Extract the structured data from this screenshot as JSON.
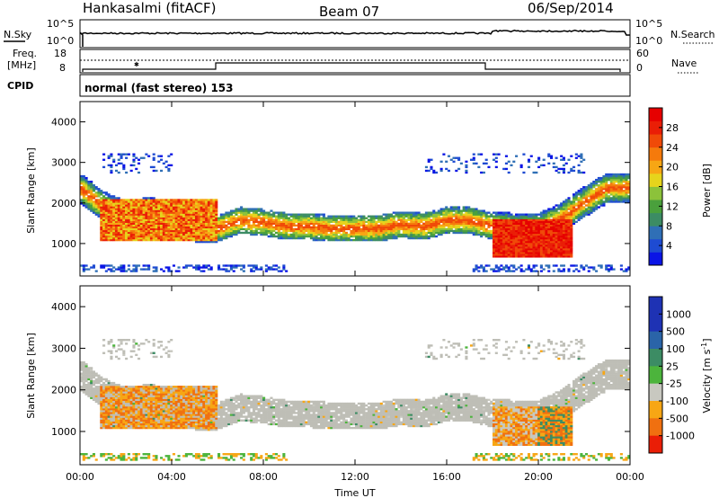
{
  "header": {
    "station": "Hankasalmi (fitACF)",
    "beam": "Beam 07",
    "date": "06/Sep/2014"
  },
  "noise_panel": {
    "left_label": "N.Sky",
    "right_label": "N.Search",
    "left_ticks": [
      "10^5",
      "10^0"
    ],
    "right_ticks": [
      "10^5",
      "10^0"
    ]
  },
  "freq_panel": {
    "left_label_1": "Freq.",
    "left_label_2": "[MHz]",
    "right_label": "Nave",
    "left_ticks": [
      "18",
      "8"
    ],
    "right_ticks": [
      "60",
      "0"
    ]
  },
  "cpid": {
    "label": "CPID",
    "value": "normal (fast stereo) 153"
  },
  "chart_data": [
    {
      "type": "heatmap",
      "name": "power",
      "ylabel": "Slant Range [km]",
      "y_ticks": [
        "1000",
        "2000",
        "3000",
        "4000"
      ],
      "ylim": [
        200,
        4500
      ],
      "x_ticks": [
        "00:00",
        "04:00",
        "08:00",
        "12:00",
        "16:00",
        "20:00",
        "00:00"
      ],
      "xlim_hours": [
        0,
        24
      ],
      "colorbar": {
        "label": "Power [dB]",
        "ticks": [
          "4",
          "8",
          "12",
          "16",
          "20",
          "24",
          "28"
        ],
        "colors": [
          "#0a14e6",
          "#1e4bd2",
          "#2f6fb6",
          "#3c8c64",
          "#4aa03c",
          "#8cc23a",
          "#e6d41c",
          "#f7a614",
          "#f57a0c",
          "#f04a08",
          "#ea1e06",
          "#e60000"
        ]
      },
      "echo_band_km": [
        [
          0,
          2350
        ],
        [
          1,
          1900
        ],
        [
          2,
          1650
        ],
        [
          3,
          1750
        ],
        [
          4,
          1650
        ],
        [
          5,
          1400
        ],
        [
          6,
          1350
        ],
        [
          7,
          1550
        ],
        [
          8,
          1500
        ],
        [
          9,
          1400
        ],
        [
          10,
          1400
        ],
        [
          11,
          1350
        ],
        [
          12,
          1350
        ],
        [
          13,
          1350
        ],
        [
          14,
          1450
        ],
        [
          15,
          1400
        ],
        [
          16,
          1550
        ],
        [
          17,
          1550
        ],
        [
          18,
          1400
        ],
        [
          19,
          1350
        ],
        [
          20,
          1350
        ],
        [
          21,
          1600
        ],
        [
          22,
          2000
        ],
        [
          23,
          2350
        ],
        [
          24,
          2350
        ]
      ]
    },
    {
      "type": "heatmap",
      "name": "velocity",
      "ylabel": "Slant Range [km]",
      "y_ticks": [
        "1000",
        "2000",
        "3000",
        "4000"
      ],
      "ylim": [
        200,
        4500
      ],
      "x_ticks": [
        "00:00",
        "04:00",
        "08:00",
        "12:00",
        "16:00",
        "20:00",
        "00:00"
      ],
      "xlim_hours": [
        0,
        24
      ],
      "xlabel": "Time UT",
      "colorbar": {
        "label": "Velocity [m s^-1]",
        "ticks": [
          "1000",
          "500",
          "100",
          "25",
          "-25",
          "-100",
          "-500",
          "-1000"
        ],
        "colors": [
          "#1e32b4",
          "#2a64a8",
          "#3c8c64",
          "#4cb43c",
          "#c8c8c0",
          "#f7a614",
          "#f07010",
          "#ea1e06"
        ]
      }
    }
  ],
  "colors": {
    "ground_scatter": "#bebeb6",
    "background": "#ffffff"
  }
}
